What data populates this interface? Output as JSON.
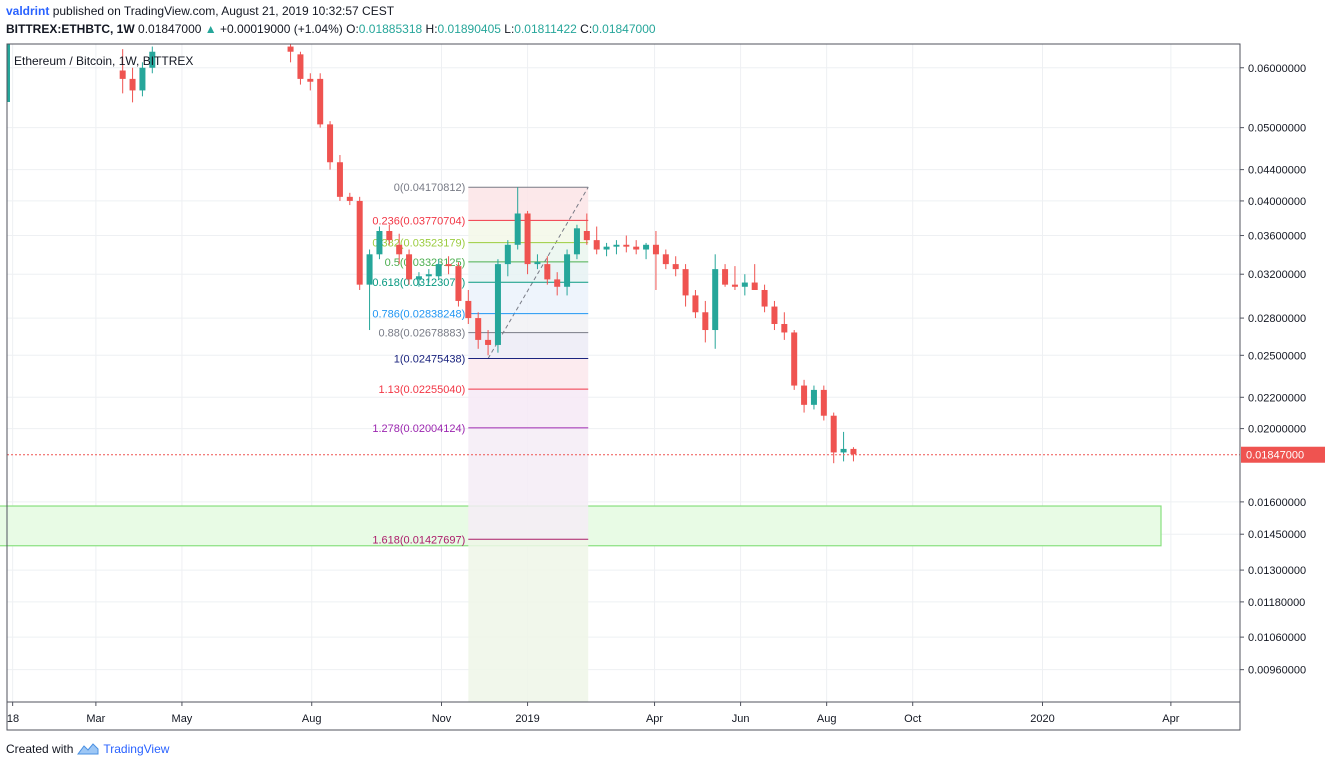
{
  "header": {
    "author": "valdrint",
    "published_text": "published on TradingView.com, August 21, 2019 10:32:57 CEST",
    "symbol": "BITTREX:ETHBTC, 1W",
    "last": "0.01847000",
    "change": "+0.00019000 (+1.04%)",
    "o_label": "O:",
    "o_val": "0.01885318",
    "h_label": "H:",
    "h_val": "0.01890405",
    "l_label": "L:",
    "l_val": "0.01811422",
    "c_label": "C:",
    "c_val": "0.01847000"
  },
  "legend": "Ethereum / Bitcoin, 1W, BITTREX",
  "footer": {
    "created_with": "Created with",
    "brand": "TradingView"
  },
  "colors": {
    "up": "#26a69a",
    "down": "#ef5350",
    "grid": "#eef0f3",
    "zone_fill": "#e8fbe5",
    "zone_border": "#88e07f",
    "price_line": "#ef5350"
  },
  "chart_data": {
    "type": "candlestick",
    "scale": "log",
    "ylim": [
      0.0087,
      0.0645
    ],
    "y_ticks": [
      "0.06000000",
      "0.05000000",
      "0.04400000",
      "0.04000000",
      "0.03600000",
      "0.03200000",
      "0.02800000",
      "0.02500000",
      "0.02200000",
      "0.02000000",
      "0.01847000",
      "0.01600000",
      "0.01450000",
      "0.01300000",
      "0.01180000",
      "0.01060000",
      "0.00960000"
    ],
    "current_price": "0.01847000",
    "x_ticks": [
      {
        "label": "18",
        "date": "2018-01-01"
      },
      {
        "label": "Mar",
        "date": "2018-03-01"
      },
      {
        "label": "May",
        "date": "2018-05-01"
      },
      {
        "label": "Aug",
        "date": "2018-08-01"
      },
      {
        "label": "Nov",
        "date": "2018-11-01"
      },
      {
        "label": "2019",
        "date": "2019-01-01"
      },
      {
        "label": "Apr",
        "date": "2019-04-01"
      },
      {
        "label": "Jun",
        "date": "2019-06-01"
      },
      {
        "label": "Aug",
        "date": "2019-08-01"
      },
      {
        "label": "Oct",
        "date": "2019-10-01"
      },
      {
        "label": "2020",
        "date": "2020-01-01"
      },
      {
        "label": "Apr",
        "date": "2020-04-01"
      }
    ],
    "candles": [
      {
        "date": "2018-03-20",
        "o": 0.0595,
        "h": 0.0635,
        "l": 0.0555,
        "c": 0.058
      },
      {
        "date": "2018-03-27",
        "o": 0.058,
        "h": 0.06,
        "l": 0.054,
        "c": 0.056
      },
      {
        "date": "2018-04-03",
        "o": 0.056,
        "h": 0.061,
        "l": 0.055,
        "c": 0.06
      },
      {
        "date": "2018-04-10",
        "o": 0.06,
        "h": 0.064,
        "l": 0.059,
        "c": 0.063
      },
      {
        "date": "2018-07-17",
        "o": 0.064,
        "h": 0.0645,
        "l": 0.061,
        "c": 0.063
      },
      {
        "date": "2018-07-24",
        "o": 0.0625,
        "h": 0.063,
        "l": 0.057,
        "c": 0.058
      },
      {
        "date": "2018-07-31",
        "o": 0.058,
        "h": 0.059,
        "l": 0.056,
        "c": 0.0575
      },
      {
        "date": "2018-08-07",
        "o": 0.058,
        "h": 0.059,
        "l": 0.05,
        "c": 0.0505
      },
      {
        "date": "2018-08-14",
        "o": 0.0505,
        "h": 0.051,
        "l": 0.044,
        "c": 0.045
      },
      {
        "date": "2018-08-21",
        "o": 0.045,
        "h": 0.046,
        "l": 0.04,
        "c": 0.0405
      },
      {
        "date": "2018-08-28",
        "o": 0.0405,
        "h": 0.041,
        "l": 0.0395,
        "c": 0.04
      },
      {
        "date": "2018-09-04",
        "o": 0.04,
        "h": 0.0405,
        "l": 0.0305,
        "c": 0.031
      },
      {
        "date": "2018-09-11",
        "o": 0.031,
        "h": 0.0345,
        "l": 0.027,
        "c": 0.034
      },
      {
        "date": "2018-09-18",
        "o": 0.034,
        "h": 0.037,
        "l": 0.0335,
        "c": 0.0365
      },
      {
        "date": "2018-09-25",
        "o": 0.0365,
        "h": 0.0372,
        "l": 0.035,
        "c": 0.0355
      },
      {
        "date": "2018-10-02",
        "o": 0.035,
        "h": 0.0362,
        "l": 0.033,
        "c": 0.034
      },
      {
        "date": "2018-10-09",
        "o": 0.034,
        "h": 0.0345,
        "l": 0.031,
        "c": 0.0315
      },
      {
        "date": "2018-10-16",
        "o": 0.0315,
        "h": 0.0322,
        "l": 0.0308,
        "c": 0.0318
      },
      {
        "date": "2018-10-23",
        "o": 0.0318,
        "h": 0.0325,
        "l": 0.0312,
        "c": 0.032
      },
      {
        "date": "2018-10-30",
        "o": 0.0318,
        "h": 0.0335,
        "l": 0.0315,
        "c": 0.033
      },
      {
        "date": "2018-11-06",
        "o": 0.033,
        "h": 0.0338,
        "l": 0.032,
        "c": 0.0328
      },
      {
        "date": "2018-11-13",
        "o": 0.0328,
        "h": 0.0332,
        "l": 0.029,
        "c": 0.0295
      },
      {
        "date": "2018-11-20",
        "o": 0.0295,
        "h": 0.0305,
        "l": 0.0275,
        "c": 0.028
      },
      {
        "date": "2018-11-27",
        "o": 0.028,
        "h": 0.0285,
        "l": 0.0255,
        "c": 0.0262
      },
      {
        "date": "2018-12-04",
        "o": 0.0262,
        "h": 0.027,
        "l": 0.025,
        "c": 0.0258
      },
      {
        "date": "2018-12-11",
        "o": 0.0258,
        "h": 0.0335,
        "l": 0.0252,
        "c": 0.033
      },
      {
        "date": "2018-12-18",
        "o": 0.033,
        "h": 0.0355,
        "l": 0.0318,
        "c": 0.035
      },
      {
        "date": "2018-12-25",
        "o": 0.035,
        "h": 0.0417,
        "l": 0.0345,
        "c": 0.0385
      },
      {
        "date": "2019-01-01",
        "o": 0.0385,
        "h": 0.0388,
        "l": 0.032,
        "c": 0.033
      },
      {
        "date": "2019-01-08",
        "o": 0.033,
        "h": 0.034,
        "l": 0.0325,
        "c": 0.0332
      },
      {
        "date": "2019-01-15",
        "o": 0.033,
        "h": 0.0338,
        "l": 0.031,
        "c": 0.0315
      },
      {
        "date": "2019-01-22",
        "o": 0.0315,
        "h": 0.0322,
        "l": 0.03,
        "c": 0.0308
      },
      {
        "date": "2019-01-29",
        "o": 0.0308,
        "h": 0.0345,
        "l": 0.03,
        "c": 0.034
      },
      {
        "date": "2019-02-05",
        "o": 0.034,
        "h": 0.0372,
        "l": 0.0335,
        "c": 0.0368
      },
      {
        "date": "2019-02-12",
        "o": 0.0365,
        "h": 0.0385,
        "l": 0.035,
        "c": 0.0355
      },
      {
        "date": "2019-02-19",
        "o": 0.0355,
        "h": 0.037,
        "l": 0.034,
        "c": 0.0345
      },
      {
        "date": "2019-02-26",
        "o": 0.0345,
        "h": 0.0352,
        "l": 0.0338,
        "c": 0.0348
      },
      {
        "date": "2019-03-05",
        "o": 0.0348,
        "h": 0.0355,
        "l": 0.034,
        "c": 0.035
      },
      {
        "date": "2019-03-12",
        "o": 0.035,
        "h": 0.036,
        "l": 0.0342,
        "c": 0.0348
      },
      {
        "date": "2019-03-19",
        "o": 0.0348,
        "h": 0.0355,
        "l": 0.034,
        "c": 0.0345
      },
      {
        "date": "2019-03-26",
        "o": 0.0345,
        "h": 0.0352,
        "l": 0.0335,
        "c": 0.035
      },
      {
        "date": "2019-04-02",
        "o": 0.035,
        "h": 0.0365,
        "l": 0.0305,
        "c": 0.034
      },
      {
        "date": "2019-04-09",
        "o": 0.034,
        "h": 0.0345,
        "l": 0.0325,
        "c": 0.033
      },
      {
        "date": "2019-04-16",
        "o": 0.033,
        "h": 0.0338,
        "l": 0.0318,
        "c": 0.0325
      },
      {
        "date": "2019-04-23",
        "o": 0.0325,
        "h": 0.033,
        "l": 0.029,
        "c": 0.03
      },
      {
        "date": "2019-04-30",
        "o": 0.03,
        "h": 0.0305,
        "l": 0.028,
        "c": 0.0285
      },
      {
        "date": "2019-05-07",
        "o": 0.0285,
        "h": 0.0295,
        "l": 0.026,
        "c": 0.027
      },
      {
        "date": "2019-05-14",
        "o": 0.027,
        "h": 0.034,
        "l": 0.0255,
        "c": 0.0325
      },
      {
        "date": "2019-05-21",
        "o": 0.0325,
        "h": 0.033,
        "l": 0.0308,
        "c": 0.031
      },
      {
        "date": "2019-05-28",
        "o": 0.031,
        "h": 0.0328,
        "l": 0.0305,
        "c": 0.0308
      },
      {
        "date": "2019-06-04",
        "o": 0.0308,
        "h": 0.032,
        "l": 0.03,
        "c": 0.0312
      },
      {
        "date": "2019-06-11",
        "o": 0.0312,
        "h": 0.033,
        "l": 0.0305,
        "c": 0.0305
      },
      {
        "date": "2019-06-18",
        "o": 0.0305,
        "h": 0.031,
        "l": 0.0285,
        "c": 0.029
      },
      {
        "date": "2019-06-25",
        "o": 0.029,
        "h": 0.0295,
        "l": 0.027,
        "c": 0.0275
      },
      {
        "date": "2019-07-02",
        "o": 0.0275,
        "h": 0.0285,
        "l": 0.0262,
        "c": 0.0268
      },
      {
        "date": "2019-07-09",
        "o": 0.0268,
        "h": 0.027,
        "l": 0.0225,
        "c": 0.0228
      },
      {
        "date": "2019-07-16",
        "o": 0.0228,
        "h": 0.0232,
        "l": 0.021,
        "c": 0.0215
      },
      {
        "date": "2019-07-23",
        "o": 0.0215,
        "h": 0.0228,
        "l": 0.0212,
        "c": 0.0225
      },
      {
        "date": "2019-07-30",
        "o": 0.0225,
        "h": 0.0228,
        "l": 0.0205,
        "c": 0.0208
      },
      {
        "date": "2019-08-06",
        "o": 0.0208,
        "h": 0.021,
        "l": 0.018,
        "c": 0.0186
      },
      {
        "date": "2019-08-13",
        "o": 0.0186,
        "h": 0.0198,
        "l": 0.0181,
        "c": 0.0188
      },
      {
        "date": "2019-08-20",
        "o": 0.0188,
        "h": 0.0189,
        "l": 0.0181,
        "c": 0.0185
      }
    ],
    "fib": {
      "x_start_date": "2018-11-20",
      "x_end_date": "2019-02-13",
      "levels": [
        {
          "label": "0(0.04170812)",
          "price": 0.04170812,
          "color": "#787b86"
        },
        {
          "label": "0.236(0.03770704)",
          "price": 0.03770704,
          "color": "#f23645"
        },
        {
          "label": "0.382(0.03523179)",
          "price": 0.03523179,
          "color": "#9bcc3f"
        },
        {
          "label": "0.5(0.03323125)",
          "price": 0.03323125,
          "color": "#4caf50"
        },
        {
          "label": "0.618(0.03123071)",
          "price": 0.03123071,
          "color": "#089981"
        },
        {
          "label": "0.786(0.02838248)",
          "price": 0.02838248,
          "color": "#2196f3"
        },
        {
          "label": "0.88(0.02678883)",
          "price": 0.02678883,
          "color": "#787b86"
        },
        {
          "label": "1(0.02475438)",
          "price": 0.02475438,
          "color": "#1a237e"
        },
        {
          "label": "1.13(0.02255040)",
          "price": 0.0225504,
          "color": "#f23645"
        },
        {
          "label": "1.278(0.02004124)",
          "price": 0.02004124,
          "color": "#9c27b0"
        },
        {
          "label": "1.618(0.01427697)",
          "price": 0.01427697,
          "color": "#ab1b6a"
        }
      ]
    },
    "support_zone": {
      "from_date": "2017-12-20",
      "to_date": "2020-03-25",
      "low": 0.014,
      "high": 0.0158
    }
  }
}
